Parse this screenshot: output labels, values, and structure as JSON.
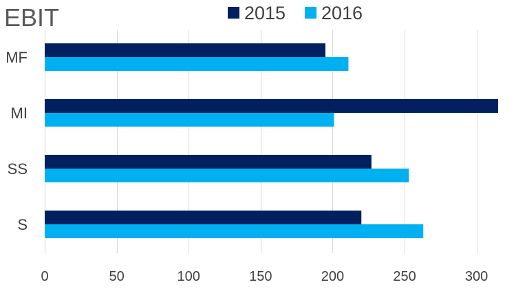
{
  "chart_data": {
    "type": "bar",
    "orientation": "horizontal",
    "title": "EBIT",
    "categories": [
      "MF",
      "MI",
      "SS",
      "S"
    ],
    "series": [
      {
        "name": "2015",
        "values": [
          195,
          315,
          227,
          220
        ],
        "color": "#002060"
      },
      {
        "name": "2016",
        "values": [
          211,
          201,
          253,
          263
        ],
        "color": "#00b0f0"
      }
    ],
    "xlim": [
      0,
      315
    ],
    "xticks": [
      0,
      50,
      100,
      150,
      200,
      250,
      300
    ],
    "grid": true,
    "legend_position": "top-center",
    "xlabel": "",
    "ylabel": ""
  }
}
